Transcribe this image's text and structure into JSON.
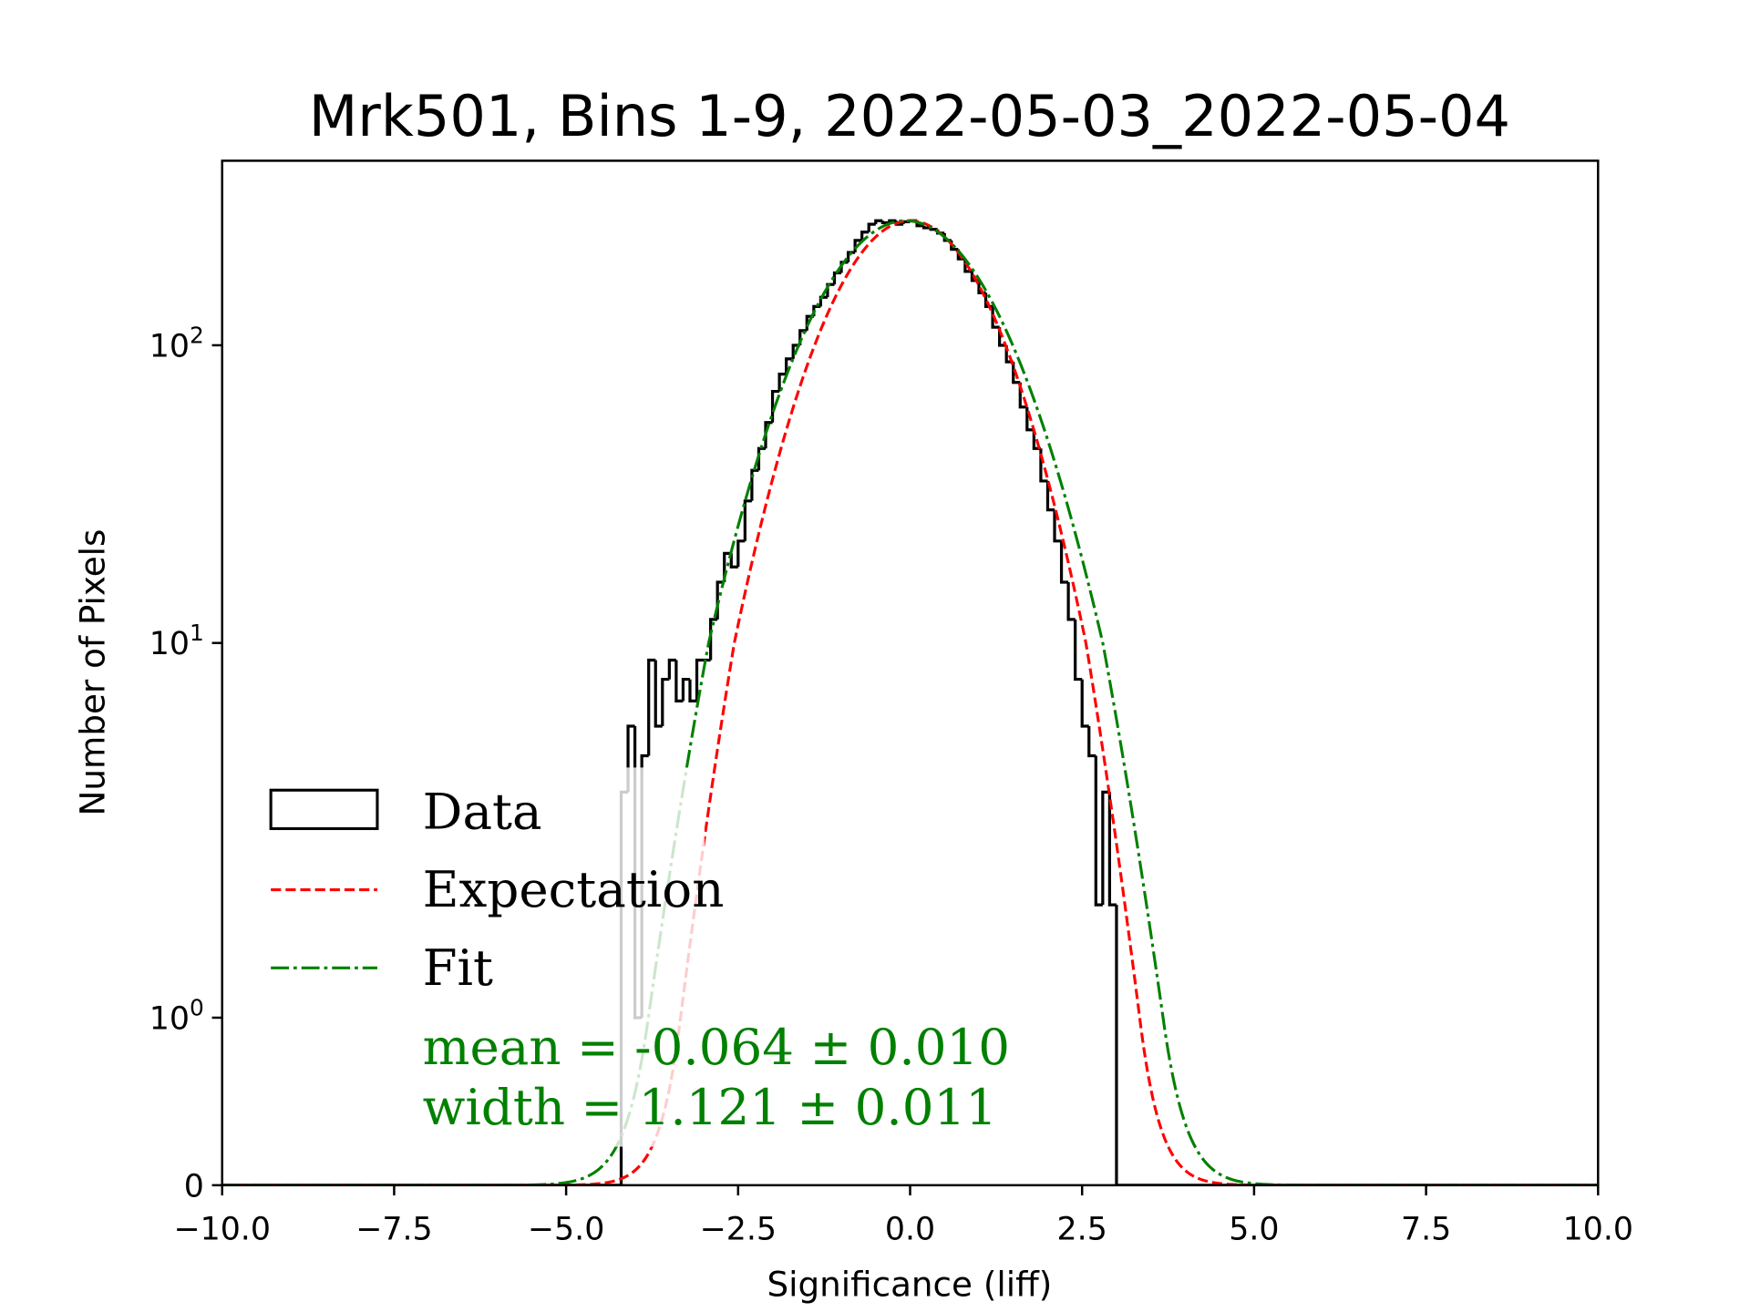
{
  "chart_data": {
    "type": "histogram",
    "title": "Mrk501, Bins 1-9, 2022-05-03_2022-05-04",
    "xlabel": "Significance (liff)",
    "ylabel": "Number of Pixels",
    "xlim": [
      -10,
      10
    ],
    "yscale": "symlog",
    "ylim_max": 300,
    "x_ticks": [
      {
        "value": -10,
        "label": "−10.0"
      },
      {
        "value": -7.5,
        "label": "−7.5"
      },
      {
        "value": -5,
        "label": "−5.0"
      },
      {
        "value": -2.5,
        "label": "−2.5"
      },
      {
        "value": 0,
        "label": "0.0"
      },
      {
        "value": 2.5,
        "label": "2.5"
      },
      {
        "value": 5,
        "label": "5.0"
      },
      {
        "value": 7.5,
        "label": "7.5"
      },
      {
        "value": 10,
        "label": "10.0"
      }
    ],
    "y_ticks": [
      {
        "value": 0,
        "base": "0",
        "exp": ""
      },
      {
        "value": 1,
        "base": "10",
        "exp": "0"
      },
      {
        "value": 10,
        "base": "10",
        "exp": "1"
      },
      {
        "value": 100,
        "base": "10",
        "exp": "2"
      }
    ],
    "histogram": {
      "name": "Data",
      "bin_start": -4.2,
      "bin_width": 0.1,
      "color": "#000000",
      "counts": [
        4,
        6,
        1,
        5,
        9,
        6,
        8,
        9,
        7,
        8,
        7,
        9,
        9,
        12,
        16,
        20,
        18,
        22,
        30,
        38,
        45,
        55,
        70,
        80,
        90,
        100,
        112,
        125,
        135,
        145,
        160,
        175,
        190,
        205,
        225,
        240,
        255,
        262,
        258,
        262,
        255,
        260,
        262,
        252,
        248,
        245,
        238,
        225,
        210,
        195,
        177,
        165,
        150,
        135,
        115,
        100,
        88,
        75,
        62,
        52,
        45,
        35,
        28,
        22,
        16,
        12,
        8,
        6,
        5,
        2,
        4,
        2
      ]
    },
    "series": [
      {
        "name": "Expectation",
        "type": "gaussian",
        "mean": 0.0,
        "width": 1.0,
        "amplitude": 262,
        "color": "#ff0000",
        "style": "dashed"
      },
      {
        "name": "Fit",
        "type": "gaussian",
        "mean": -0.064,
        "width": 1.121,
        "amplitude": 262,
        "color": "#008000",
        "style": "dashdot"
      }
    ],
    "legend": {
      "position": "center-left",
      "entries": [
        "Data",
        "Expectation",
        "Fit"
      ]
    },
    "annotations": [
      "mean = -0.064 ± 0.010",
      "width = 1.121 ± 0.011"
    ]
  }
}
